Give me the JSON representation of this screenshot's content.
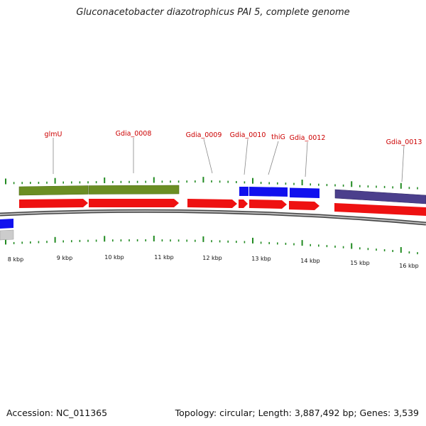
{
  "title": "Gluconacetobacter diazotrophicus PAI 5, complete genome",
  "footer": {
    "accession": "Accession: NC_011365",
    "topology": "Topology: circular; Length: 3,887,492 bp; Genes: 3,539"
  },
  "colors": {
    "forward_cds": "#ee1111",
    "reverse_cds": "#1111ee",
    "cog_green": "#6b8e23",
    "cog_purple": "#4b3f8c",
    "gene_label": "#cc0000",
    "tick": "#228b22",
    "backbone": "#888888"
  },
  "gene_labels": [
    {
      "name": "glmU"
    },
    {
      "name": "Gdia_0008"
    },
    {
      "name": "Gdia_0009"
    },
    {
      "name": "Gdia_0010"
    },
    {
      "name": "thiG"
    },
    {
      "name": "Gdia_0012"
    },
    {
      "name": "Gdia_0013"
    }
  ],
  "kbp_labels": [
    "8 kbp",
    "9 kbp",
    "10 kbp",
    "11 kbp",
    "12 kbp",
    "13 kbp",
    "14 kbp",
    "15 kbp",
    "16 kbp"
  ]
}
